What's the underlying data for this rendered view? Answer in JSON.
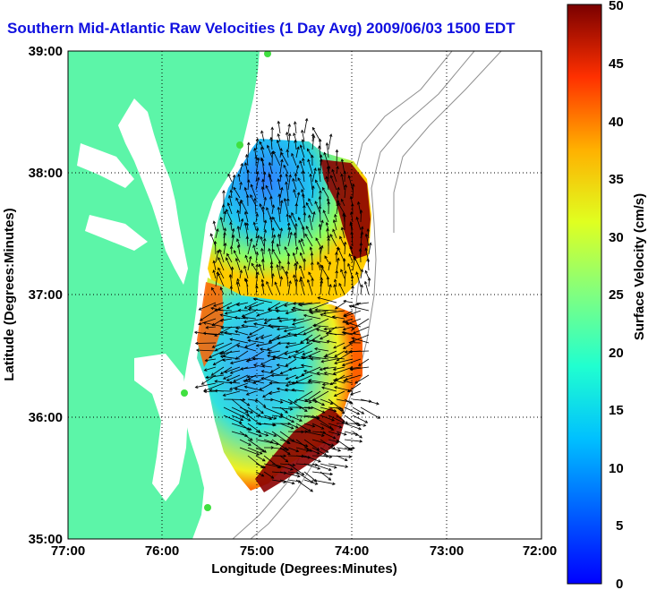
{
  "title": "Southern Mid-Atlantic Raw Velocities (1 Day Avg) 2009/06/03 1500 EDT",
  "map": {
    "xlabel": "Longitude (Degrees:Minutes)",
    "ylabel": "Latitude (Degrees:Minutes)",
    "x_ticks": [
      "77:00",
      "76:00",
      "75:00",
      "74:00",
      "73:00",
      "72:00"
    ],
    "y_ticks": [
      "39:00",
      "38:00",
      "37:00",
      "36:00",
      "35:00"
    ],
    "lon_range": [
      -77,
      -72
    ],
    "lat_range": [
      35,
      39
    ],
    "grid": "dotted",
    "land_color": "#5cf5a8",
    "station_color": "#40e040"
  },
  "colorbar": {
    "label": "Surface Velocity (cm/s)",
    "ticks": [
      "50",
      "45",
      "40",
      "35",
      "30",
      "25",
      "20",
      "15",
      "10",
      "5",
      "0"
    ],
    "range": [
      0,
      50
    ],
    "colormap": "jet"
  }
}
